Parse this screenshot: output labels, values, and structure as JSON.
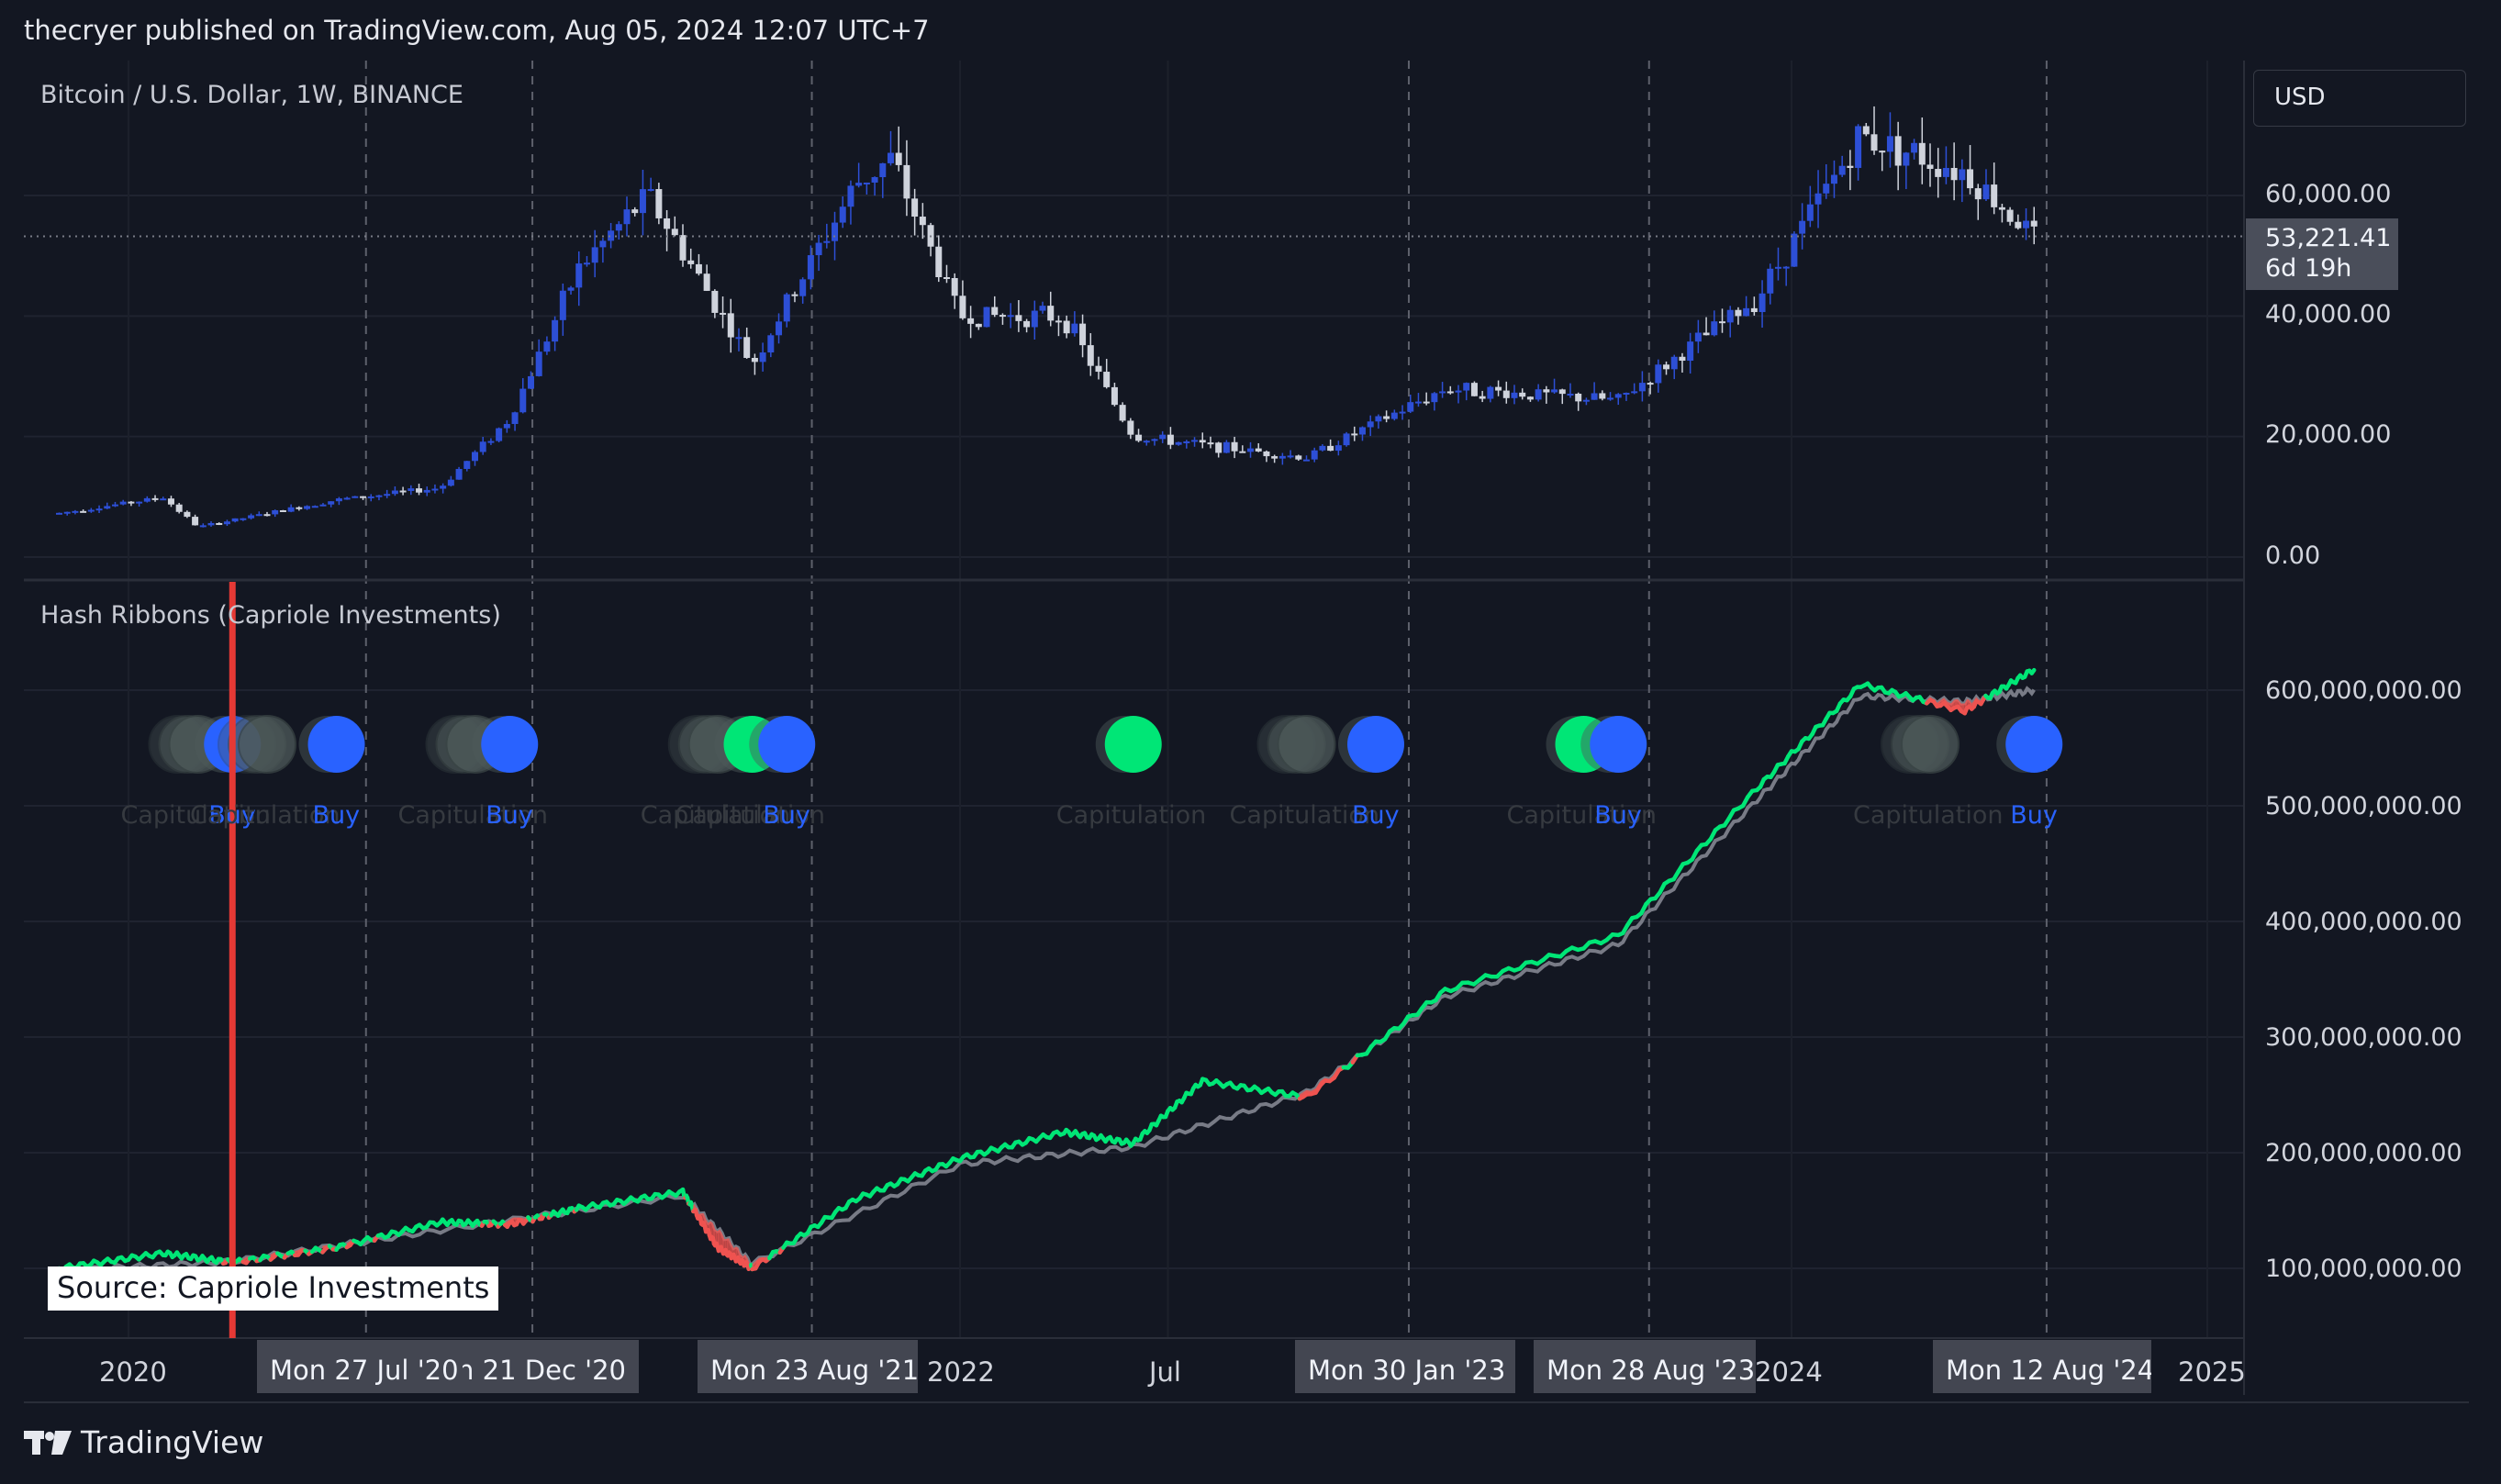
{
  "header": {
    "published_by": "thecryer published on TradingView.com, Aug 05, 2024 12:07 UTC+7"
  },
  "price_pane": {
    "title": "Bitcoin / U.S. Dollar, 1W, BINANCE",
    "currency_button": "USD",
    "last_price": "53,221.41",
    "countdown": "6d 19h"
  },
  "indicator_pane": {
    "title": "Hash Ribbons (Capriole Investments)"
  },
  "source_label": "Source: Capriole Investments",
  "brand": {
    "name": "TradingView"
  },
  "colors": {
    "background": "#131722",
    "candle_up": "#2d4fd6",
    "candle_down": "#cfd3dc",
    "ribbon_fast_up": "#00e676",
    "ribbon_fast_down": "#ef5350",
    "ribbon_slow": "#787b86",
    "buy_dot": "#2962ff",
    "capitulation_dot": "#4e5a5a",
    "recovery_dot": "#00e676",
    "marker_line": "#e53935"
  },
  "chart_data": [
    {
      "type": "candlestick",
      "title": "Bitcoin / U.S. Dollar, 1W, BINANCE",
      "ylim": [
        0,
        80000
      ],
      "y_ticks": [
        {
          "value": 0,
          "label": "0.00"
        },
        {
          "value": 20000,
          "label": "20,000.00"
        },
        {
          "value": 40000,
          "label": "40,000.00"
        },
        {
          "value": 60000,
          "label": "60,000.00"
        }
      ],
      "approx_close_path": [
        {
          "x": "2019-11",
          "y": 7300
        },
        {
          "x": "2020-02",
          "y": 9900
        },
        {
          "x": "2020-03",
          "y": 5000
        },
        {
          "x": "2020-07",
          "y": 9500
        },
        {
          "x": "2020-10",
          "y": 11500
        },
        {
          "x": "2020-12",
          "y": 23000
        },
        {
          "x": "2021-02",
          "y": 48000
        },
        {
          "x": "2021-04",
          "y": 60000
        },
        {
          "x": "2021-07",
          "y": 32000
        },
        {
          "x": "2021-10",
          "y": 62000
        },
        {
          "x": "2021-11",
          "y": 66000
        },
        {
          "x": "2022-01",
          "y": 40000
        },
        {
          "x": "2022-04",
          "y": 40000
        },
        {
          "x": "2022-06",
          "y": 20000
        },
        {
          "x": "2022-11",
          "y": 16500
        },
        {
          "x": "2023-03",
          "y": 28000
        },
        {
          "x": "2023-08",
          "y": 26000
        },
        {
          "x": "2023-12",
          "y": 43000
        },
        {
          "x": "2024-03",
          "y": 70000
        },
        {
          "x": "2024-06",
          "y": 64000
        },
        {
          "x": "2024-08",
          "y": 53221.41
        }
      ],
      "last_value": 53221.41
    },
    {
      "type": "line",
      "title": "Hash Ribbons (Capriole Investments)",
      "ylim": [
        50000000,
        650000000
      ],
      "y_ticks": [
        {
          "value": 100000000,
          "label": "100,000,000.00"
        },
        {
          "value": 200000000,
          "label": "200,000,000.00"
        },
        {
          "value": 300000000,
          "label": "300,000,000.00"
        },
        {
          "value": 400000000,
          "label": "400,000,000.00"
        },
        {
          "value": 500000000,
          "label": "500,000,000.00"
        },
        {
          "value": 600000000,
          "label": "600,000,000.00"
        }
      ],
      "series": [
        {
          "values_by_date": [
            [
              "2019-11",
              100000000
            ],
            [
              "2020-02",
              113000000
            ],
            [
              "2020-04",
              105000000
            ],
            [
              "2020-07",
              118000000
            ],
            [
              "2020-10",
              140000000
            ],
            [
              "2020-12",
              138000000
            ],
            [
              "2021-02",
              152000000
            ],
            [
              "2021-05",
              166000000
            ],
            [
              "2021-06",
              118000000
            ],
            [
              "2021-07",
              100000000
            ],
            [
              "2021-10",
              160000000
            ],
            [
              "2022-01",
              195000000
            ],
            [
              "2022-04",
              218000000
            ],
            [
              "2022-06",
              208000000
            ],
            [
              "2022-08",
              262000000
            ],
            [
              "2022-11",
              248000000
            ],
            [
              "2023-03",
              340000000
            ],
            [
              "2023-08",
              388000000
            ],
            [
              "2023-12",
              515000000
            ],
            [
              "2024-03",
              605000000
            ],
            [
              "2024-06",
              582000000
            ],
            [
              "2024-08",
              618000000
            ]
          ]
        },
        {
          "values_by_date": [
            [
              "2019-11",
              98000000
            ],
            [
              "2020-04",
              106000000
            ],
            [
              "2020-10",
              133000000
            ],
            [
              "2021-05",
              163000000
            ],
            [
              "2021-07",
              104000000
            ],
            [
              "2022-01",
              190000000
            ],
            [
              "2022-06",
              205000000
            ],
            [
              "2022-11",
              252000000
            ],
            [
              "2023-03",
              335000000
            ],
            [
              "2023-08",
              380000000
            ],
            [
              "2023-12",
              505000000
            ],
            [
              "2024-03",
              595000000
            ],
            [
              "2024-06",
              590000000
            ],
            [
              "2024-08",
              600000000
            ]
          ]
        }
      ]
    }
  ],
  "signals": [
    {
      "kind": "capitulation",
      "label": "Capitulation",
      "date": "2020-03",
      "dot": "grey"
    },
    {
      "kind": "buy",
      "label": "Buy",
      "date": "2020-04",
      "dot": "blue"
    },
    {
      "kind": "capitulation",
      "label": "Capitulation",
      "date": "2020-05",
      "dot": "grey"
    },
    {
      "kind": "buy",
      "label": "Buy",
      "date": "2020-07",
      "dot": "blue"
    },
    {
      "kind": "capitulation",
      "label": "Capitulation",
      "date": "2020-11",
      "dot": "grey"
    },
    {
      "kind": "buy",
      "label": "Buy",
      "date": "2020-12",
      "dot": "blue"
    },
    {
      "kind": "capitulation",
      "label": "Capitulation",
      "date": "2021-06",
      "dot": "grey"
    },
    {
      "kind": "capitulation",
      "label": "Capitulation",
      "date": "2021-07",
      "dot": "green"
    },
    {
      "kind": "buy",
      "label": "Buy",
      "date": "2021-08",
      "dot": "blue"
    },
    {
      "kind": "capitulation",
      "label": "Capitulation",
      "date": "2022-06",
      "dot": "green"
    },
    {
      "kind": "capitulation",
      "label": "Capitulation",
      "date": "2022-11",
      "dot": "grey"
    },
    {
      "kind": "buy",
      "label": "Buy",
      "date": "2023-01",
      "dot": "blue"
    },
    {
      "kind": "capitulation",
      "label": "Capitulation",
      "date": "2023-07",
      "dot": "green"
    },
    {
      "kind": "buy",
      "label": "Buy",
      "date": "2023-08",
      "dot": "blue"
    },
    {
      "kind": "capitulation",
      "label": "Capitulation",
      "date": "2024-05",
      "dot": "grey"
    },
    {
      "kind": "buy",
      "label": "Buy",
      "date": "2024-08",
      "dot": "blue"
    }
  ],
  "time_axis": {
    "ticks": [
      {
        "label": "2020",
        "date": "2020-01"
      },
      {
        "label": "2022",
        "date": "2022-01"
      },
      {
        "label": "Jul",
        "date": "2022-07"
      },
      {
        "label": "2024",
        "date": "2024-01"
      },
      {
        "label": "2025",
        "date": "2025-01"
      }
    ],
    "highlighted_dates": [
      {
        "label": "Mon 27 Jul '20",
        "date": "2020-07-27"
      },
      {
        "label": "Mon 21 Dec '20",
        "date": "2020-12-21"
      },
      {
        "label": "Mon 23 Aug '21",
        "date": "2021-08-23"
      },
      {
        "label": "Mon 30 Jan '23",
        "date": "2023-01-30"
      },
      {
        "label": "Mon 28 Aug '23",
        "date": "2023-08-28"
      },
      {
        "label": "Mon 12 Aug '24",
        "date": "2024-08-12"
      }
    ],
    "vertical_marker_date": "2020-04"
  }
}
